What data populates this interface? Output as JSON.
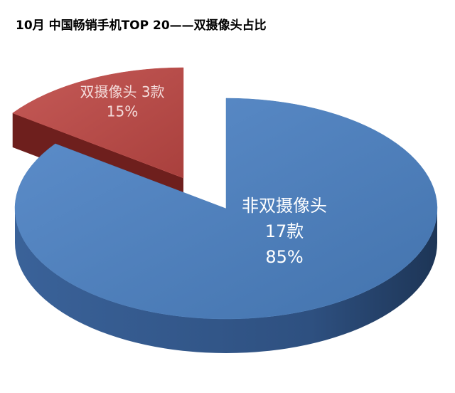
{
  "chart_data": {
    "type": "pie",
    "title": "10月 中国畅销手机TOP 20——双摄像头占比",
    "categories": [
      "非双摄像头",
      "双摄像头"
    ],
    "count_labels": [
      "17款",
      "3款"
    ],
    "values": [
      85,
      15
    ],
    "value_labels": [
      "85%",
      "15%"
    ],
    "colors": [
      "#4f81bd",
      "#c0504d"
    ],
    "exploded": [
      false,
      true
    ]
  }
}
